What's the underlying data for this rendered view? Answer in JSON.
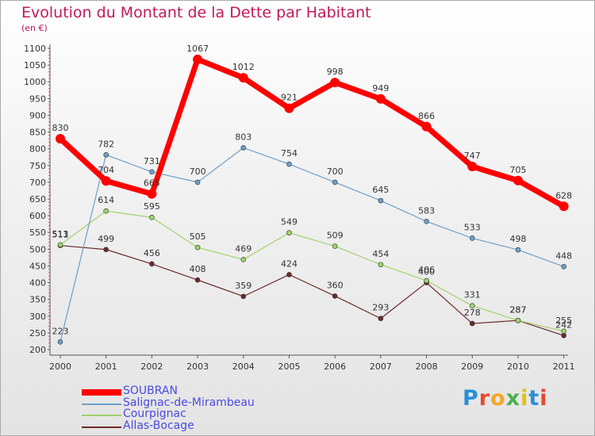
{
  "title": "Evolution du Montant de la Dette par Habitant",
  "subtitle": "(en €)",
  "brand": {
    "text": "Proxiti",
    "letter_colors": [
      "#2b8fd6",
      "#e8472f",
      "#f5a623",
      "#4caf50",
      "#e0c015",
      "#2b8fd6",
      "#e8472f"
    ]
  },
  "chart_data": {
    "type": "line",
    "x": [
      "2000",
      "2001",
      "2002",
      "2003",
      "2004",
      "2005",
      "2006",
      "2007",
      "2008",
      "2009",
      "2010",
      "2011"
    ],
    "ylim": [
      200,
      1100
    ],
    "yticks": [
      200,
      250,
      300,
      350,
      400,
      450,
      500,
      550,
      600,
      650,
      700,
      750,
      800,
      850,
      900,
      950,
      1000,
      1050,
      1100
    ],
    "grid": false,
    "legend_position": "bottom-left",
    "series": [
      {
        "name": "SOUBRAN",
        "color": "#ff0000",
        "values": [
          830,
          704,
          665,
          1067,
          1012,
          921,
          998,
          949,
          866,
          747,
          705,
          628
        ]
      },
      {
        "name": "Salignac-de-Mirambeau",
        "color": "#6e9fc9",
        "values": [
          223,
          782,
          731,
          700,
          803,
          754,
          700,
          645,
          583,
          533,
          498,
          448
        ]
      },
      {
        "name": "Courpignac",
        "color": "#9ed46b",
        "values": [
          513,
          614,
          595,
          505,
          469,
          549,
          509,
          454,
          406,
          331,
          287,
          255
        ]
      },
      {
        "name": "Allas-Bocage",
        "color": "#6b2a2a",
        "values": [
          511,
          499,
          456,
          408,
          359,
          424,
          360,
          293,
          400,
          278,
          287,
          242
        ]
      }
    ]
  }
}
